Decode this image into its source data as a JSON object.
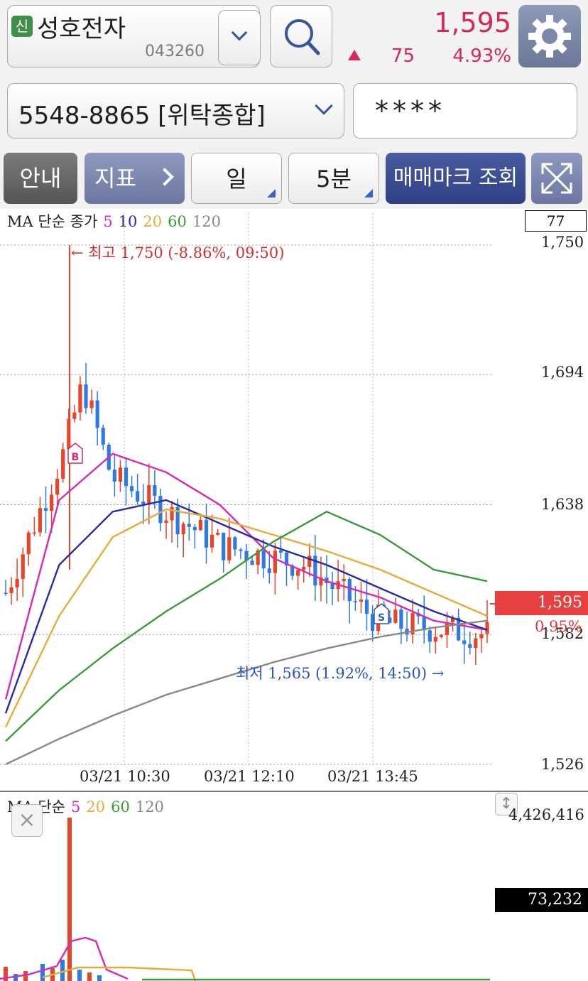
{
  "header": {
    "badge": "신",
    "stock_name": "성호전자",
    "stock_code": "043260",
    "price": "1,595",
    "change": "75",
    "change_pct": "4.93%",
    "change_color": "#d6295a"
  },
  "account": {
    "number": "5548-8865 [위탁종합]",
    "password_mask": "****"
  },
  "toolbar": {
    "info_label": "안내",
    "indicator_label": "지표",
    "period_label": "일",
    "interval_label": "5분",
    "trade_mark_label": "매매마크 조회"
  },
  "chart": {
    "legend_prefix": "MA 단순 종가",
    "legend_items": [
      {
        "label": "5",
        "color": "#d42ab5"
      },
      {
        "label": "10",
        "color": "#2a2aa8"
      },
      {
        "label": "20",
        "color": "#e6ac3a"
      },
      {
        "label": "60",
        "color": "#3a9a3a"
      },
      {
        "label": "120",
        "color": "#888888"
      }
    ],
    "y_ticks": [
      "1,750",
      "1,694",
      "1,638",
      "1,582",
      "1,526"
    ],
    "x_ticks": [
      "03/21 10:30",
      "03/21 12:10",
      "03/21 13:45"
    ],
    "box_value": "77",
    "current_price": "1,595",
    "current_pct": "0.95%",
    "high_annotation": "← 최고 1,750 (-8.86%, 09:50)",
    "low_annotation": "최저 1,565 (1.92%, 14:50) →",
    "buy_marker": "B",
    "sell_marker": "S"
  },
  "volume": {
    "legend_prefix": "MA 단순",
    "legend_items": [
      {
        "label": "5",
        "color": "#d42ab5"
      },
      {
        "label": "20",
        "color": "#e6ac3a"
      },
      {
        "label": "60",
        "color": "#3a9a3a"
      },
      {
        "label": "120",
        "color": "#888888"
      }
    ],
    "max_value": "4,426,416",
    "current_value": "73,232"
  },
  "chart_data": {
    "type": "candlestick",
    "interval": "5분",
    "x_ticks": [
      "03/21 10:30",
      "03/21 12:10",
      "03/21 13:45"
    ],
    "ylim": [
      1526,
      1750
    ],
    "y_ticks": [
      1750,
      1694,
      1638,
      1582,
      1526
    ],
    "high": {
      "price": 1750,
      "time": "09:50"
    },
    "low": {
      "price": 1565,
      "time": "14:50"
    },
    "last": 1595,
    "series": [
      {
        "name": "5",
        "values": [
          1554,
          1640,
          1660,
          1652,
          1638,
          1615,
          1605,
          1598,
          1588,
          1584
        ]
      },
      {
        "name": "10",
        "values": [
          1548,
          1612,
          1635,
          1640,
          1630,
          1620,
          1612,
          1602,
          1592,
          1584
        ]
      },
      {
        "name": "20",
        "values": [
          1542,
          1590,
          1624,
          1636,
          1632,
          1625,
          1618,
          1610,
          1600,
          1590
        ]
      },
      {
        "name": "60",
        "values": [
          1536,
          1558,
          1576,
          1592,
          1606,
          1622,
          1635,
          1625,
          1610,
          1605
        ]
      },
      {
        "name": "120",
        "values": [
          1526,
          1537,
          1547,
          1556,
          1563,
          1570,
          1576,
          1581,
          1585,
          1588
        ]
      }
    ]
  }
}
